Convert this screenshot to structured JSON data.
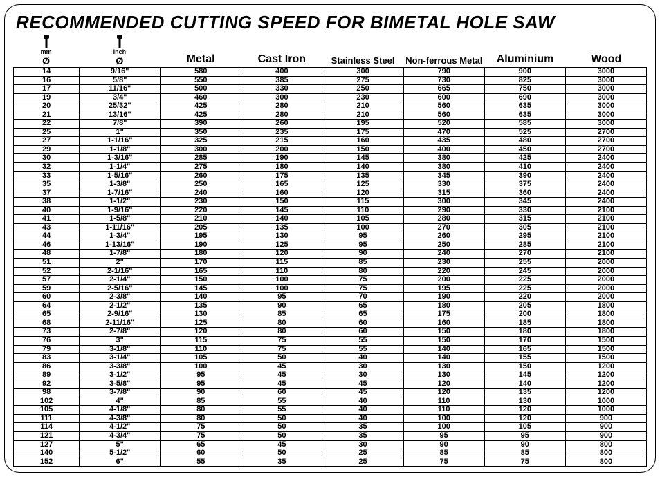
{
  "title": "RECOMMENDED CUTTING SPEED FOR BIMETAL HOLE SAW",
  "headers": {
    "mm_label": "mm",
    "inch_label": "inch",
    "diameter_symbol": "Ø",
    "metal": "Metal",
    "cast_iron": "Cast Iron",
    "stainless": "Stainless Steel",
    "nonferrous": "Non-ferrous Metal",
    "aluminium": "Aluminium",
    "wood": "Wood"
  },
  "header_fontsizes": {
    "metal": 16,
    "cast_iron": 16,
    "stainless": 13,
    "nonferrous": 13,
    "aluminium": 16,
    "wood": 16
  },
  "col_widths_pct": {
    "mm": 10.4,
    "inch": 12.8,
    "value": 12.8
  },
  "colors": {
    "text": "#000000",
    "background": "#ffffff",
    "grid": "#000000"
  },
  "rows": [
    {
      "mm": "14",
      "inch": "9/16\"",
      "metal": "580",
      "cast": "400",
      "ss": "300",
      "nf": "790",
      "al": "900",
      "wood": "3000"
    },
    {
      "mm": "16",
      "inch": "5/8\"",
      "metal": "550",
      "cast": "385",
      "ss": "275",
      "nf": "730",
      "al": "825",
      "wood": "3000"
    },
    {
      "mm": "17",
      "inch": "11/16\"",
      "metal": "500",
      "cast": "330",
      "ss": "250",
      "nf": "665",
      "al": "750",
      "wood": "3000"
    },
    {
      "mm": "19",
      "inch": "3/4\"",
      "metal": "460",
      "cast": "300",
      "ss": "230",
      "nf": "600",
      "al": "690",
      "wood": "3000"
    },
    {
      "mm": "20",
      "inch": "25/32\"",
      "metal": "425",
      "cast": "280",
      "ss": "210",
      "nf": "560",
      "al": "635",
      "wood": "3000"
    },
    {
      "mm": "21",
      "inch": "13/16\"",
      "metal": "425",
      "cast": "280",
      "ss": "210",
      "nf": "560",
      "al": "635",
      "wood": "3000"
    },
    {
      "mm": "22",
      "inch": "7/8\"",
      "metal": "390",
      "cast": "260",
      "ss": "195",
      "nf": "520",
      "al": "585",
      "wood": "3000"
    },
    {
      "mm": "25",
      "inch": "1\"",
      "metal": "350",
      "cast": "235",
      "ss": "175",
      "nf": "470",
      "al": "525",
      "wood": "2700"
    },
    {
      "mm": "27",
      "inch": "1-1/16\"",
      "metal": "325",
      "cast": "215",
      "ss": "160",
      "nf": "435",
      "al": "480",
      "wood": "2700"
    },
    {
      "mm": "29",
      "inch": "1-1/8\"",
      "metal": "300",
      "cast": "200",
      "ss": "150",
      "nf": "400",
      "al": "450",
      "wood": "2700"
    },
    {
      "mm": "30",
      "inch": "1-3/16\"",
      "metal": "285",
      "cast": "190",
      "ss": "145",
      "nf": "380",
      "al": "425",
      "wood": "2400"
    },
    {
      "mm": "32",
      "inch": "1-1/4\"",
      "metal": "275",
      "cast": "180",
      "ss": "140",
      "nf": "380",
      "al": "410",
      "wood": "2400"
    },
    {
      "mm": "33",
      "inch": "1-5/16\"",
      "metal": "260",
      "cast": "175",
      "ss": "135",
      "nf": "345",
      "al": "390",
      "wood": "2400"
    },
    {
      "mm": "35",
      "inch": "1-3/8\"",
      "metal": "250",
      "cast": "165",
      "ss": "125",
      "nf": "330",
      "al": "375",
      "wood": "2400"
    },
    {
      "mm": "37",
      "inch": "1-7/16\"",
      "metal": "240",
      "cast": "160",
      "ss": "120",
      "nf": "315",
      "al": "360",
      "wood": "2400"
    },
    {
      "mm": "38",
      "inch": "1-1/2\"",
      "metal": "230",
      "cast": "150",
      "ss": "115",
      "nf": "300",
      "al": "345",
      "wood": "2400"
    },
    {
      "mm": "40",
      "inch": "1-9/16\"",
      "metal": "220",
      "cast": "145",
      "ss": "110",
      "nf": "290",
      "al": "330",
      "wood": "2100"
    },
    {
      "mm": "41",
      "inch": "1-5/8\"",
      "metal": "210",
      "cast": "140",
      "ss": "105",
      "nf": "280",
      "al": "315",
      "wood": "2100"
    },
    {
      "mm": "43",
      "inch": "1-11/16\"",
      "metal": "205",
      "cast": "135",
      "ss": "100",
      "nf": "270",
      "al": "305",
      "wood": "2100"
    },
    {
      "mm": "44",
      "inch": "1-3/4\"",
      "metal": "195",
      "cast": "130",
      "ss": "95",
      "nf": "260",
      "al": "295",
      "wood": "2100"
    },
    {
      "mm": "46",
      "inch": "1-13/16\"",
      "metal": "190",
      "cast": "125",
      "ss": "95",
      "nf": "250",
      "al": "285",
      "wood": "2100"
    },
    {
      "mm": "48",
      "inch": "1-7/8\"",
      "metal": "180",
      "cast": "120",
      "ss": "90",
      "nf": "240",
      "al": "270",
      "wood": "2100"
    },
    {
      "mm": "51",
      "inch": "2\"",
      "metal": "170",
      "cast": "115",
      "ss": "85",
      "nf": "230",
      "al": "255",
      "wood": "2000"
    },
    {
      "mm": "52",
      "inch": "2-1/16\"",
      "metal": "165",
      "cast": "110",
      "ss": "80",
      "nf": "220",
      "al": "245",
      "wood": "2000"
    },
    {
      "mm": "57",
      "inch": "2-1/4\"",
      "metal": "150",
      "cast": "100",
      "ss": "75",
      "nf": "200",
      "al": "225",
      "wood": "2000"
    },
    {
      "mm": "59",
      "inch": "2-5/16\"",
      "metal": "145",
      "cast": "100",
      "ss": "75",
      "nf": "195",
      "al": "225",
      "wood": "2000"
    },
    {
      "mm": "60",
      "inch": "2-3/8\"",
      "metal": "140",
      "cast": "95",
      "ss": "70",
      "nf": "190",
      "al": "220",
      "wood": "2000"
    },
    {
      "mm": "64",
      "inch": "2-1/2\"",
      "metal": "135",
      "cast": "90",
      "ss": "65",
      "nf": "180",
      "al": "205",
      "wood": "1800"
    },
    {
      "mm": "65",
      "inch": "2-9/16\"",
      "metal": "130",
      "cast": "85",
      "ss": "65",
      "nf": "175",
      "al": "200",
      "wood": "1800"
    },
    {
      "mm": "68",
      "inch": "2-11/16\"",
      "metal": "125",
      "cast": "80",
      "ss": "60",
      "nf": "160",
      "al": "185",
      "wood": "1800"
    },
    {
      "mm": "73",
      "inch": "2-7/8\"",
      "metal": "120",
      "cast": "80",
      "ss": "60",
      "nf": "150",
      "al": "180",
      "wood": "1800"
    },
    {
      "mm": "76",
      "inch": "3\"",
      "metal": "115",
      "cast": "75",
      "ss": "55",
      "nf": "150",
      "al": "170",
      "wood": "1500"
    },
    {
      "mm": "79",
      "inch": "3-1/8\"",
      "metal": "110",
      "cast": "75",
      "ss": "55",
      "nf": "140",
      "al": "165",
      "wood": "1500"
    },
    {
      "mm": "83",
      "inch": "3-1/4\"",
      "metal": "105",
      "cast": "50",
      "ss": "40",
      "nf": "140",
      "al": "155",
      "wood": "1500"
    },
    {
      "mm": "86",
      "inch": "3-3/8\"",
      "metal": "100",
      "cast": "45",
      "ss": "30",
      "nf": "130",
      "al": "150",
      "wood": "1200"
    },
    {
      "mm": "89",
      "inch": "3-1/2\"",
      "metal": "95",
      "cast": "45",
      "ss": "30",
      "nf": "130",
      "al": "145",
      "wood": "1200"
    },
    {
      "mm": "92",
      "inch": "3-5/8\"",
      "metal": "95",
      "cast": "45",
      "ss": "45",
      "nf": "120",
      "al": "140",
      "wood": "1200"
    },
    {
      "mm": "98",
      "inch": "3-7/8\"",
      "metal": "90",
      "cast": "60",
      "ss": "45",
      "nf": "120",
      "al": "135",
      "wood": "1200"
    },
    {
      "mm": "102",
      "inch": "4\"",
      "metal": "85",
      "cast": "55",
      "ss": "40",
      "nf": "110",
      "al": "130",
      "wood": "1000"
    },
    {
      "mm": "105",
      "inch": "4-1/8\"",
      "metal": "80",
      "cast": "55",
      "ss": "40",
      "nf": "110",
      "al": "120",
      "wood": "1000"
    },
    {
      "mm": "111",
      "inch": "4-3/8\"",
      "metal": "80",
      "cast": "50",
      "ss": "40",
      "nf": "100",
      "al": "120",
      "wood": "900"
    },
    {
      "mm": "114",
      "inch": "4-1/2\"",
      "metal": "75",
      "cast": "50",
      "ss": "35",
      "nf": "100",
      "al": "105",
      "wood": "900"
    },
    {
      "mm": "121",
      "inch": "4-3/4\"",
      "metal": "75",
      "cast": "50",
      "ss": "35",
      "nf": "95",
      "al": "95",
      "wood": "900"
    },
    {
      "mm": "127",
      "inch": "5\"",
      "metal": "65",
      "cast": "45",
      "ss": "30",
      "nf": "90",
      "al": "90",
      "wood": "800"
    },
    {
      "mm": "140",
      "inch": "5-1/2\"",
      "metal": "60",
      "cast": "50",
      "ss": "25",
      "nf": "85",
      "al": "85",
      "wood": "800"
    },
    {
      "mm": "152",
      "inch": "6\"",
      "metal": "55",
      "cast": "35",
      "ss": "25",
      "nf": "75",
      "al": "75",
      "wood": "800"
    }
  ]
}
